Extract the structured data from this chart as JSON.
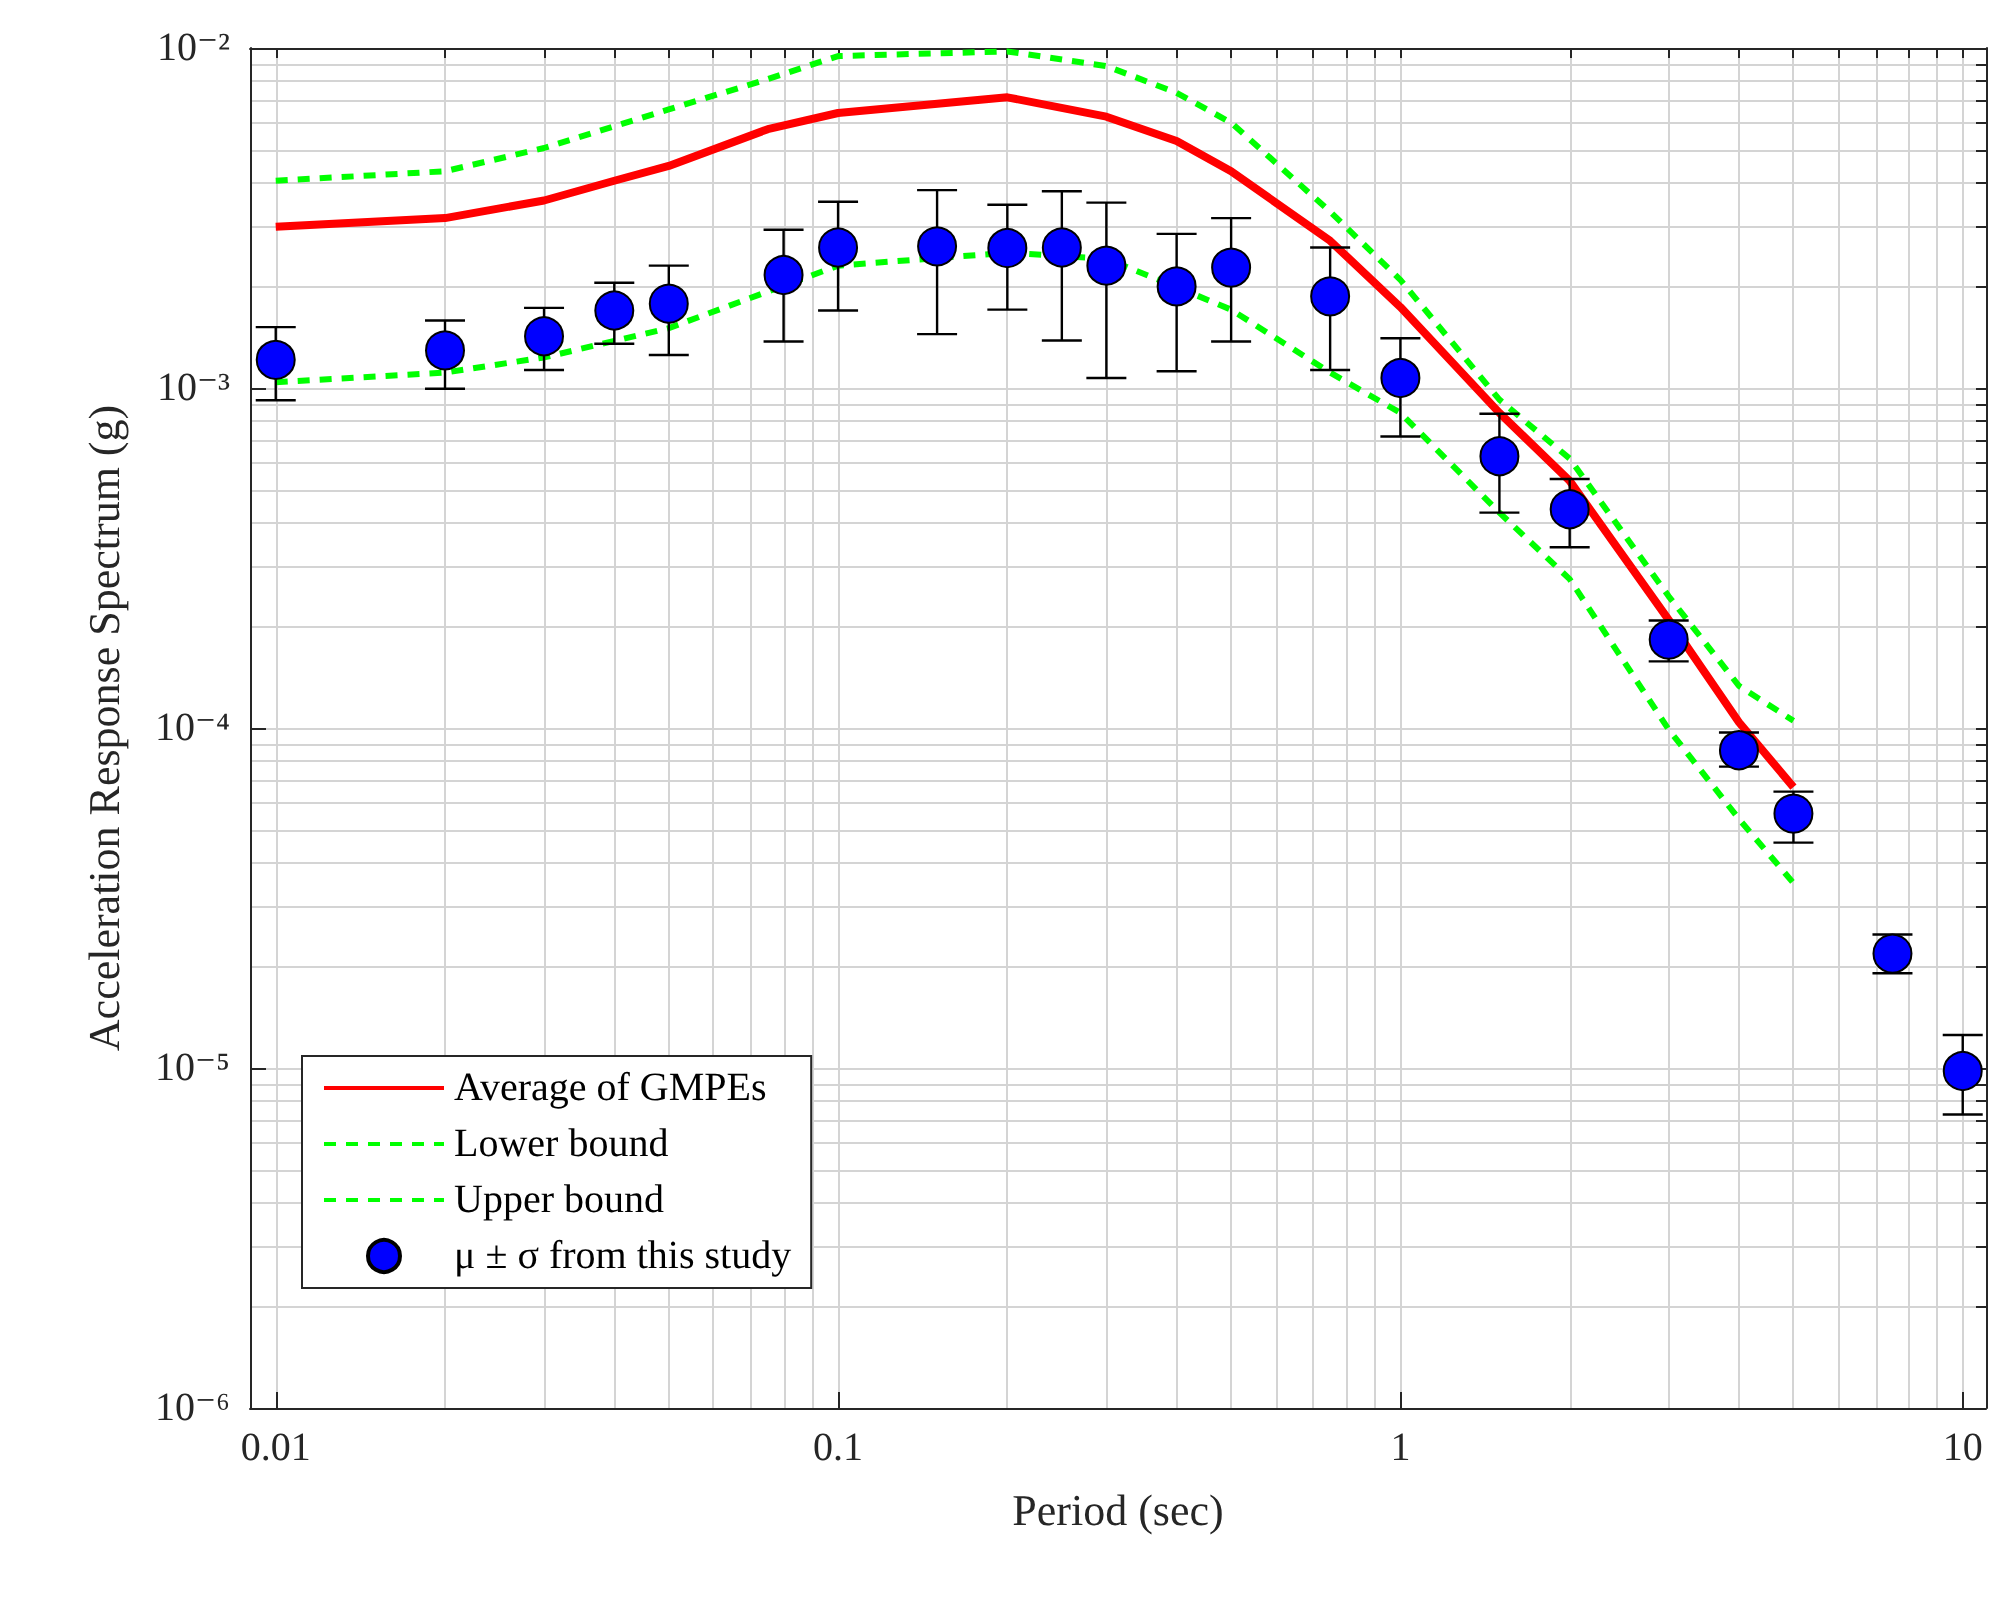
{
  "chart_data": {
    "type": "line",
    "xlabel": "Period (sec)",
    "ylabel": "Acceleration Response Spectrum (g)",
    "log": "xy",
    "grid": true,
    "legend": "bottom left",
    "xlim": [
      0.009,
      11
    ],
    "xticks": [
      0.01,
      0.1,
      1,
      10
    ],
    "ylim": [
      1e-06,
      0.01
    ],
    "yticks": [
      {
        "value": 1e-06,
        "label": "10⁻⁶"
      },
      {
        "value": 1e-05,
        "label": "10⁻⁵"
      },
      {
        "value": 0.0001,
        "label": "10⁻⁴"
      },
      {
        "value": 0.001,
        "label": "10⁻³"
      },
      {
        "value": 0.01,
        "label": "10⁻²"
      }
    ],
    "series": [
      {
        "name": "Average of GMPEs",
        "color": "#ff0000",
        "line_style": "solid",
        "marker": "none",
        "x": [
          0.01,
          0.02,
          0.03,
          0.04,
          0.05,
          0.075,
          0.1,
          0.2,
          0.3,
          0.4,
          0.5,
          0.75,
          1,
          1.5,
          2,
          3,
          4,
          5
        ],
        "values": [
          0.00298,
          0.00316,
          0.00356,
          0.00407,
          0.0045,
          0.00577,
          0.00644,
          0.00716,
          0.00628,
          0.00533,
          0.00434,
          0.00271,
          0.00173,
          0.000845,
          0.000533,
          0.000208,
          0.000104,
          6.7e-05
        ]
      },
      {
        "name": "Lower bound",
        "color": "#00ff00",
        "line_style": "dashed",
        "marker": "none",
        "x": [
          0.01,
          0.02,
          0.03,
          0.05,
          0.1,
          0.2,
          0.3,
          0.4,
          0.5,
          0.75,
          1,
          1.5,
          2,
          3,
          4,
          5
        ],
        "values": [
          0.00104,
          0.00111,
          0.00123,
          0.0015,
          0.00229,
          0.0025,
          0.0024,
          0.00198,
          0.0017,
          0.00111,
          0.000845,
          0.00043,
          0.000274,
          9.9e-05,
          5.4e-05,
          3.5e-05
        ]
      },
      {
        "name": "Upper bound",
        "color": "#00ff00",
        "line_style": "dashed",
        "marker": "none",
        "x": [
          0.01,
          0.02,
          0.03,
          0.05,
          0.075,
          0.1,
          0.2,
          0.3,
          0.4,
          0.5,
          0.75,
          1,
          1.5,
          2,
          3,
          4,
          5
        ],
        "values": [
          0.00407,
          0.00434,
          0.00508,
          0.0066,
          0.0081,
          0.00947,
          0.00977,
          0.00885,
          0.00738,
          0.00603,
          0.0033,
          0.00208,
          0.000924,
          0.00062,
          0.000244,
          0.000133,
          0.000105
        ]
      },
      {
        "name": "μ ± σ from this study",
        "type": "scatter",
        "color": "#0000ff",
        "marker": "circle",
        "x": [
          0.01,
          0.02,
          0.03,
          0.04,
          0.05,
          0.08,
          0.1,
          0.15,
          0.2,
          0.25,
          0.3,
          0.4,
          0.5,
          0.75,
          1,
          1.5,
          2,
          3,
          4,
          5,
          7.5,
          10
        ],
        "values": [
          0.00121,
          0.00129,
          0.00142,
          0.00169,
          0.00177,
          0.00215,
          0.00259,
          0.00261,
          0.00258,
          0.00259,
          0.00229,
          0.00199,
          0.00226,
          0.00186,
          0.00107,
          0.00063,
          0.00044,
          0.000182,
          8.6e-05,
          5.6e-05,
          2.17e-05,
          9.8e-06
        ],
        "errors": [
          [
            0.00092,
            0.00151
          ],
          [
            0.000995,
            0.00158
          ],
          [
            0.00113,
            0.00172
          ],
          [
            0.00135,
            0.00204
          ],
          [
            0.00125,
            0.00229
          ],
          [
            0.00137,
            0.00292
          ],
          [
            0.00169,
            0.00353
          ],
          [
            0.00144,
            0.00382
          ],
          [
            0.0017,
            0.00346
          ],
          [
            0.00138,
            0.00379
          ],
          [
            0.00107,
            0.00351
          ],
          [
            0.00112,
            0.00284
          ],
          [
            0.00137,
            0.00316
          ],
          [
            0.00113,
            0.00259
          ],
          [
            0.00072,
            0.0014
          ],
          [
            0.00043,
            0.00084
          ],
          [
            0.00034,
            0.00054
          ],
          [
            0.000157,
            0.000207
          ],
          [
            7.7e-05,
            9.7e-05
          ],
          [
            4.6e-05,
            6.5e-05
          ],
          [
            1.9e-05,
            2.47e-05
          ],
          [
            7.3e-06,
            1.25e-05
          ]
        ]
      }
    ]
  }
}
